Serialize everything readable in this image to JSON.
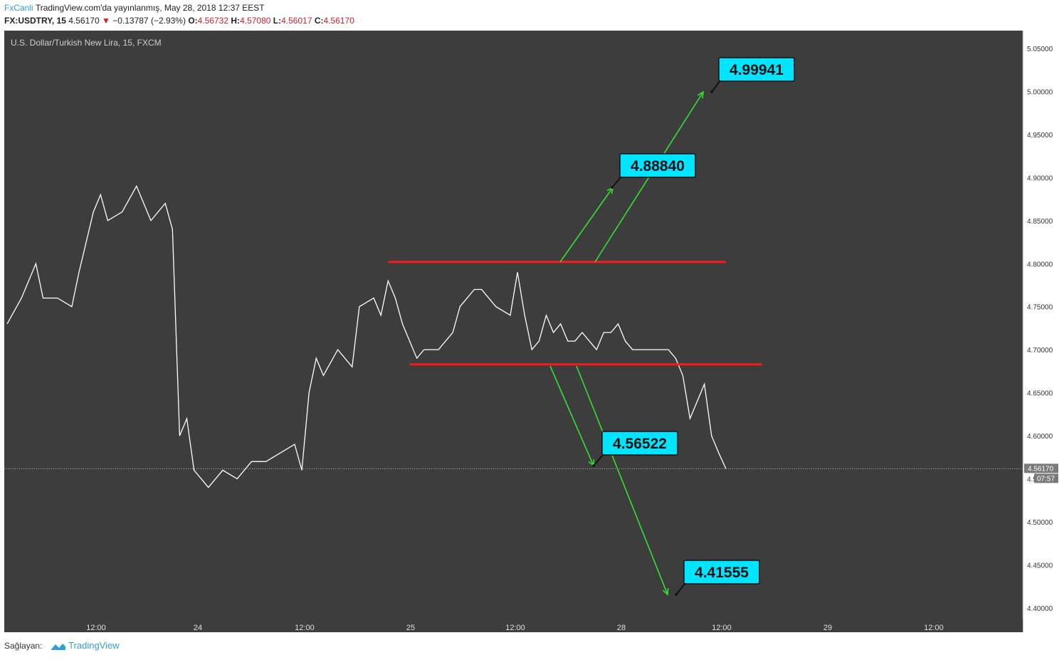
{
  "header": {
    "author": "FxCanli",
    "published": "TradingView.com'da yayınlanmış, May 28, 2018 12:37 EEST",
    "symbol": "FX:USDTRY, 15",
    "last": "4.56170",
    "change": "−0.13787 (−2.93%)",
    "open_label": "O:",
    "open": "4.56732",
    "high_label": "H:",
    "high": "4.57080",
    "low_label": "L:",
    "low": "4.56017",
    "close_label": "C:",
    "close": "4.56170"
  },
  "footer": {
    "provider_label": "Sağlayan:",
    "provider": "TradingView"
  },
  "chart_data": {
    "type": "line",
    "title": "U.S. Dollar/Turkish New Lira, 15, FXCM",
    "ylim": [
      4.38,
      5.07
    ],
    "y_ticks": [
      "5.05000",
      "5.00000",
      "4.95000",
      "4.90000",
      "4.85000",
      "4.80000",
      "4.75000",
      "4.70000",
      "4.65000",
      "4.60000",
      "4.55000",
      "4.50000",
      "4.45000",
      "4.40000"
    ],
    "x_ticks": [
      "12:00",
      "24",
      "12:00",
      "25",
      "12:00",
      "28",
      "12:00",
      "29",
      "12:00"
    ],
    "last_price_label": "4.56170",
    "countdown": "07:57",
    "colors": {
      "background": "#3d3d3d",
      "price": "#ffffff",
      "levels": "#ff1a1a",
      "arrows": "#33e033",
      "target_box": "#00e5ff"
    },
    "price_path": [
      [
        0,
        4.73
      ],
      [
        2,
        4.76
      ],
      [
        4,
        4.8
      ],
      [
        5,
        4.76
      ],
      [
        7,
        4.76
      ],
      [
        9,
        4.75
      ],
      [
        10,
        4.79
      ],
      [
        12,
        4.86
      ],
      [
        13,
        4.88
      ],
      [
        14,
        4.85
      ],
      [
        16,
        4.86
      ],
      [
        18,
        4.89
      ],
      [
        20,
        4.85
      ],
      [
        22,
        4.87
      ],
      [
        23,
        4.84
      ],
      [
        24,
        4.6
      ],
      [
        25,
        4.62
      ],
      [
        26,
        4.56
      ],
      [
        28,
        4.54
      ],
      [
        30,
        4.56
      ],
      [
        32,
        4.55
      ],
      [
        34,
        4.57
      ],
      [
        36,
        4.57
      ],
      [
        38,
        4.58
      ],
      [
        40,
        4.59
      ],
      [
        41,
        4.56
      ],
      [
        42,
        4.65
      ],
      [
        43,
        4.69
      ],
      [
        44,
        4.67
      ],
      [
        46,
        4.7
      ],
      [
        48,
        4.68
      ],
      [
        49,
        4.75
      ],
      [
        51,
        4.76
      ],
      [
        52,
        4.74
      ],
      [
        53,
        4.78
      ],
      [
        54,
        4.76
      ],
      [
        55,
        4.73
      ],
      [
        56,
        4.71
      ],
      [
        57,
        4.69
      ],
      [
        58,
        4.7
      ],
      [
        60,
        4.7
      ],
      [
        62,
        4.72
      ],
      [
        63,
        4.75
      ],
      [
        64,
        4.76
      ],
      [
        65,
        4.77
      ],
      [
        66,
        4.77
      ],
      [
        68,
        4.75
      ],
      [
        70,
        4.74
      ],
      [
        71,
        4.79
      ],
      [
        72,
        4.74
      ],
      [
        73,
        4.7
      ],
      [
        74,
        4.71
      ],
      [
        75,
        4.74
      ],
      [
        76,
        4.72
      ],
      [
        77,
        4.73
      ],
      [
        78,
        4.71
      ],
      [
        79,
        4.71
      ],
      [
        80,
        4.72
      ],
      [
        81,
        4.71
      ],
      [
        82,
        4.7
      ],
      [
        83,
        4.72
      ],
      [
        84,
        4.72
      ],
      [
        85,
        4.73
      ],
      [
        86,
        4.71
      ],
      [
        87,
        4.7
      ],
      [
        88,
        4.7
      ],
      [
        89,
        4.7
      ],
      [
        90,
        4.7
      ],
      [
        91,
        4.7
      ],
      [
        92,
        4.7
      ],
      [
        93,
        4.69
      ],
      [
        94,
        4.67
      ],
      [
        95,
        4.62
      ],
      [
        96,
        4.64
      ],
      [
        97,
        4.66
      ],
      [
        98,
        4.6
      ],
      [
        99,
        4.58
      ],
      [
        100,
        4.5617
      ]
    ],
    "levels": [
      {
        "name": "resistance",
        "y": 4.802,
        "x_from": 53,
        "x_to": 100
      },
      {
        "name": "support",
        "y": 4.683,
        "x_from": 56,
        "x_to": 105
      }
    ],
    "targets": [
      {
        "label": "4.99941",
        "value": 4.99941
      },
      {
        "label": "4.88840",
        "value": 4.8884
      },
      {
        "label": "4.56522",
        "value": 4.56522
      },
      {
        "label": "4.41555",
        "value": 4.41555
      }
    ]
  }
}
